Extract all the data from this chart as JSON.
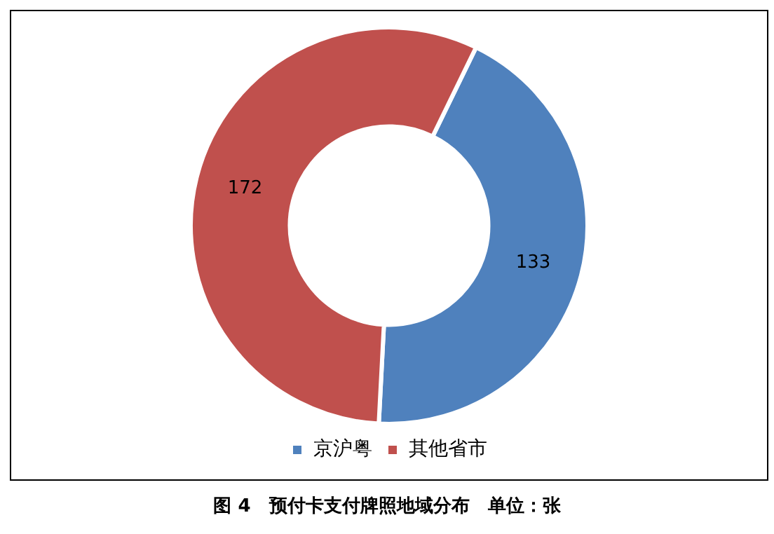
{
  "chart_data": {
    "type": "donut",
    "title": "图 4　预付卡支付牌照地域分布　单位：张",
    "categories": [
      "京沪粤",
      "其他省市"
    ],
    "values": [
      133,
      172
    ],
    "colors": [
      "#4f81bd",
      "#c0504d"
    ],
    "data_labels": true,
    "legend": "bottom"
  }
}
